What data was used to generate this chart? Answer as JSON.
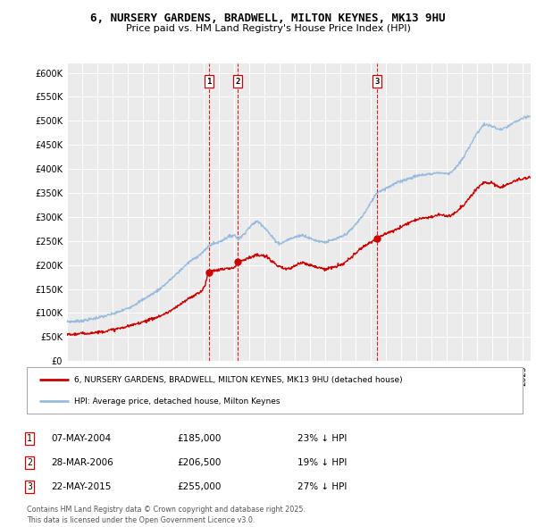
{
  "title_line1": "6, NURSERY GARDENS, BRADWELL, MILTON KEYNES, MK13 9HU",
  "title_line2": "Price paid vs. HM Land Registry's House Price Index (HPI)",
  "ylim": [
    0,
    620000
  ],
  "yticks": [
    0,
    50000,
    100000,
    150000,
    200000,
    250000,
    300000,
    350000,
    400000,
    450000,
    500000,
    550000,
    600000
  ],
  "ytick_labels": [
    "£0",
    "£50K",
    "£100K",
    "£150K",
    "£200K",
    "£250K",
    "£300K",
    "£350K",
    "£400K",
    "£450K",
    "£500K",
    "£550K",
    "£600K"
  ],
  "xlim": [
    1995,
    2025.5
  ],
  "background_color": "#ffffff",
  "plot_bg_color": "#ebebeb",
  "grid_color": "#ffffff",
  "line_red_color": "#cc0000",
  "line_blue_color": "#99bbdd",
  "vline_color": "#cc0000",
  "purchases": [
    {
      "date": 2004.35,
      "price": 185000,
      "label": "1"
    },
    {
      "date": 2006.24,
      "price": 206500,
      "label": "2"
    },
    {
      "date": 2015.39,
      "price": 255000,
      "label": "3"
    }
  ],
  "legend_line1": "6, NURSERY GARDENS, BRADWELL, MILTON KEYNES, MK13 9HU (detached house)",
  "legend_line2": "HPI: Average price, detached house, Milton Keynes",
  "table_entries": [
    {
      "label": "1",
      "date": "07-MAY-2004",
      "price": "£185,000",
      "pct": "23% ↓ HPI"
    },
    {
      "label": "2",
      "date": "28-MAR-2006",
      "price": "£206,500",
      "pct": "19% ↓ HPI"
    },
    {
      "label": "3",
      "date": "22-MAY-2015",
      "price": "£255,000",
      "pct": "27% ↓ HPI"
    }
  ],
  "footer": "Contains HM Land Registry data © Crown copyright and database right 2025.\nThis data is licensed under the Open Government Licence v3.0.",
  "hpi_keypoints": [
    [
      1995.0,
      82000
    ],
    [
      1996.0,
      84000
    ],
    [
      1997.0,
      90000
    ],
    [
      1998.0,
      98000
    ],
    [
      1999.0,
      110000
    ],
    [
      2000.0,
      128000
    ],
    [
      2001.0,
      148000
    ],
    [
      2002.0,
      175000
    ],
    [
      2003.0,
      205000
    ],
    [
      2004.0,
      228000
    ],
    [
      2004.35,
      240000
    ],
    [
      2005.0,
      248000
    ],
    [
      2006.0,
      262000
    ],
    [
      2006.24,
      255000
    ],
    [
      2007.0,
      278000
    ],
    [
      2007.5,
      290000
    ],
    [
      2008.0,
      278000
    ],
    [
      2008.5,
      258000
    ],
    [
      2009.0,
      245000
    ],
    [
      2009.5,
      252000
    ],
    [
      2010.0,
      258000
    ],
    [
      2010.5,
      262000
    ],
    [
      2011.0,
      255000
    ],
    [
      2011.5,
      250000
    ],
    [
      2012.0,
      248000
    ],
    [
      2012.5,
      252000
    ],
    [
      2013.0,
      258000
    ],
    [
      2013.5,
      268000
    ],
    [
      2014.0,
      285000
    ],
    [
      2014.5,
      305000
    ],
    [
      2015.0,
      330000
    ],
    [
      2015.39,
      350000
    ],
    [
      2016.0,
      360000
    ],
    [
      2016.5,
      368000
    ],
    [
      2017.0,
      375000
    ],
    [
      2017.5,
      380000
    ],
    [
      2018.0,
      385000
    ],
    [
      2018.5,
      388000
    ],
    [
      2019.0,
      390000
    ],
    [
      2019.5,
      392000
    ],
    [
      2020.0,
      390000
    ],
    [
      2020.5,
      400000
    ],
    [
      2021.0,
      420000
    ],
    [
      2021.5,
      448000
    ],
    [
      2022.0,
      475000
    ],
    [
      2022.5,
      492000
    ],
    [
      2023.0,
      488000
    ],
    [
      2023.5,
      482000
    ],
    [
      2024.0,
      488000
    ],
    [
      2024.5,
      498000
    ],
    [
      2025.0,
      505000
    ],
    [
      2025.5,
      510000
    ]
  ],
  "red_keypoints": [
    [
      1995.0,
      55000
    ],
    [
      1996.0,
      57000
    ],
    [
      1997.0,
      60000
    ],
    [
      1998.0,
      65000
    ],
    [
      1999.0,
      72000
    ],
    [
      2000.0,
      82000
    ],
    [
      2001.0,
      92000
    ],
    [
      2002.0,
      108000
    ],
    [
      2003.0,
      130000
    ],
    [
      2004.0,
      152000
    ],
    [
      2004.35,
      185000
    ],
    [
      2005.0,
      190000
    ],
    [
      2005.5,
      192000
    ],
    [
      2006.0,
      195000
    ],
    [
      2006.24,
      206500
    ],
    [
      2006.5,
      210000
    ],
    [
      2007.0,
      215000
    ],
    [
      2007.5,
      220000
    ],
    [
      2008.0,
      218000
    ],
    [
      2008.5,
      208000
    ],
    [
      2009.0,
      195000
    ],
    [
      2009.5,
      192000
    ],
    [
      2010.0,
      198000
    ],
    [
      2010.5,
      205000
    ],
    [
      2011.0,
      200000
    ],
    [
      2011.5,
      195000
    ],
    [
      2012.0,
      192000
    ],
    [
      2012.5,
      195000
    ],
    [
      2013.0,
      200000
    ],
    [
      2013.5,
      210000
    ],
    [
      2014.0,
      225000
    ],
    [
      2014.5,
      238000
    ],
    [
      2015.0,
      248000
    ],
    [
      2015.39,
      255000
    ],
    [
      2016.0,
      265000
    ],
    [
      2016.5,
      272000
    ],
    [
      2017.0,
      280000
    ],
    [
      2017.5,
      288000
    ],
    [
      2018.0,
      295000
    ],
    [
      2018.5,
      298000
    ],
    [
      2019.0,
      300000
    ],
    [
      2019.5,
      305000
    ],
    [
      2020.0,
      302000
    ],
    [
      2020.5,
      308000
    ],
    [
      2021.0,
      322000
    ],
    [
      2021.5,
      340000
    ],
    [
      2022.0,
      360000
    ],
    [
      2022.5,
      372000
    ],
    [
      2023.0,
      370000
    ],
    [
      2023.5,
      362000
    ],
    [
      2024.0,
      368000
    ],
    [
      2024.5,
      375000
    ],
    [
      2025.0,
      380000
    ],
    [
      2025.5,
      382000
    ]
  ]
}
